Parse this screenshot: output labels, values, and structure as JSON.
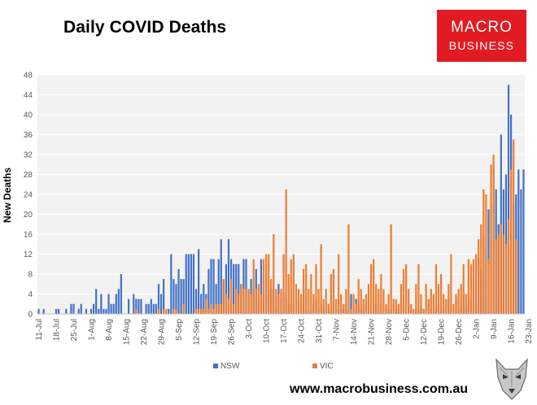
{
  "header": {
    "title": "Daily COVID Deaths"
  },
  "logo": {
    "line1": "MACRO",
    "line2": "BUSINESS",
    "background": "#e21b23"
  },
  "footer": {
    "website": "www.macrobusiness.com.au"
  },
  "colors": {
    "nsw": "#4472c4",
    "vic": "#ed7d31",
    "plot_bg": "#f2f2f2",
    "grid": "#ffffff"
  },
  "chart_data": {
    "type": "bar",
    "title": "Daily COVID Deaths",
    "xlabel": "",
    "ylabel": "New Deaths",
    "ylim": [
      0,
      48
    ],
    "yticks": [
      0,
      4,
      8,
      12,
      16,
      20,
      24,
      28,
      32,
      36,
      40,
      44,
      48
    ],
    "grid": true,
    "legend_position": "bottom",
    "start_date": "2021-07-11",
    "x_tick_labels": [
      "11-Jul",
      "18-Jul",
      "25-Jul",
      "1-Aug",
      "8-Aug",
      "15-Aug",
      "22-Aug",
      "29-Aug",
      "5-Sep",
      "12-Sep",
      "19-Sep",
      "26-Sep",
      "3-Oct",
      "10-Oct",
      "17-Oct",
      "24-Oct",
      "31-Oct",
      "7-Nov",
      "14-Nov",
      "21-Nov",
      "28-Nov",
      "5-Dec",
      "12-Dec",
      "19-Dec",
      "26-Dec",
      "2-Jan",
      "9-Jan",
      "16-Jan",
      "23-Jan"
    ],
    "series": [
      {
        "name": "NSW",
        "values": [
          1,
          0,
          1,
          0,
          0,
          0,
          0,
          1,
          1,
          0,
          0,
          1,
          0,
          2,
          2,
          0,
          1,
          2,
          0,
          1,
          0,
          1,
          2,
          5,
          1,
          4,
          1,
          1,
          4,
          2,
          2,
          4,
          5,
          8,
          0,
          0,
          3,
          0,
          4,
          3,
          3,
          3,
          0,
          2,
          2,
          3,
          2,
          2,
          6,
          4,
          7,
          0,
          1,
          12,
          7,
          6,
          9,
          7,
          7,
          12,
          12,
          12,
          12,
          5,
          13,
          4,
          6,
          4,
          9,
          11,
          11,
          6,
          11,
          15,
          7,
          10,
          15,
          11,
          10,
          10,
          10,
          6,
          11,
          11,
          5,
          7,
          5,
          9,
          3,
          11,
          4,
          8,
          4,
          5,
          5,
          1,
          6,
          3,
          4,
          3,
          2,
          2,
          2,
          0,
          3,
          2,
          5,
          1,
          0,
          1,
          2,
          3,
          1,
          2,
          1,
          0,
          2,
          1,
          2,
          1,
          3,
          1,
          1,
          2,
          1,
          4,
          1,
          3,
          2,
          1,
          1,
          2,
          2,
          0,
          2,
          2,
          0,
          2,
          0,
          1,
          1,
          1,
          0,
          1,
          1,
          2,
          1,
          0,
          2,
          1,
          0,
          1,
          1,
          1,
          1,
          0,
          2,
          1,
          0,
          1,
          2,
          1,
          1,
          0,
          3,
          1,
          0,
          3,
          1,
          2,
          4,
          1,
          2,
          3,
          8,
          2,
          11,
          9,
          16,
          13,
          21,
          22,
          29,
          25,
          18,
          36,
          25,
          28,
          46,
          40,
          22,
          24,
          29,
          25,
          29
        ],
        "color": "#4472c4"
      },
      {
        "name": "VIC",
        "values": [
          0,
          0,
          0,
          0,
          0,
          0,
          0,
          0,
          0,
          0,
          0,
          0,
          0,
          0,
          0,
          0,
          0,
          0,
          0,
          0,
          0,
          0,
          0,
          0,
          0,
          0,
          0,
          0,
          0,
          0,
          0,
          0,
          0,
          0,
          0,
          0,
          0,
          0,
          0,
          1,
          0,
          0,
          0,
          0,
          0,
          0,
          0,
          0,
          1,
          0,
          1,
          1,
          0,
          0,
          1,
          1,
          0,
          0,
          2,
          0,
          0,
          0,
          0,
          1,
          1,
          1,
          1,
          3,
          1,
          2,
          1,
          2,
          2,
          2,
          7,
          4,
          3,
          7,
          2,
          5,
          4,
          6,
          5,
          5,
          5,
          4,
          11,
          5,
          6,
          4,
          11,
          12,
          12,
          7,
          16,
          5,
          4,
          5,
          12,
          25,
          8,
          11,
          12,
          6,
          5,
          4,
          9,
          10,
          5,
          8,
          4,
          10,
          5,
          14,
          3,
          5,
          2,
          8,
          9,
          3,
          12,
          4,
          2,
          5,
          18,
          1,
          4,
          2,
          7,
          5,
          3,
          4,
          6,
          10,
          11,
          6,
          5,
          8,
          5,
          2,
          4,
          18,
          3,
          3,
          2,
          6,
          9,
          10,
          5,
          2,
          1,
          6,
          10,
          4,
          1,
          6,
          3,
          5,
          4,
          10,
          6,
          8,
          4,
          3,
          6,
          12,
          2,
          4,
          5,
          6,
          10,
          4,
          11,
          10,
          11,
          12,
          15,
          18,
          25,
          24,
          11,
          30,
          32,
          15,
          16,
          18,
          16,
          14,
          19,
          29,
          35,
          15
        ],
        "color": "#ed7d31"
      }
    ]
  }
}
